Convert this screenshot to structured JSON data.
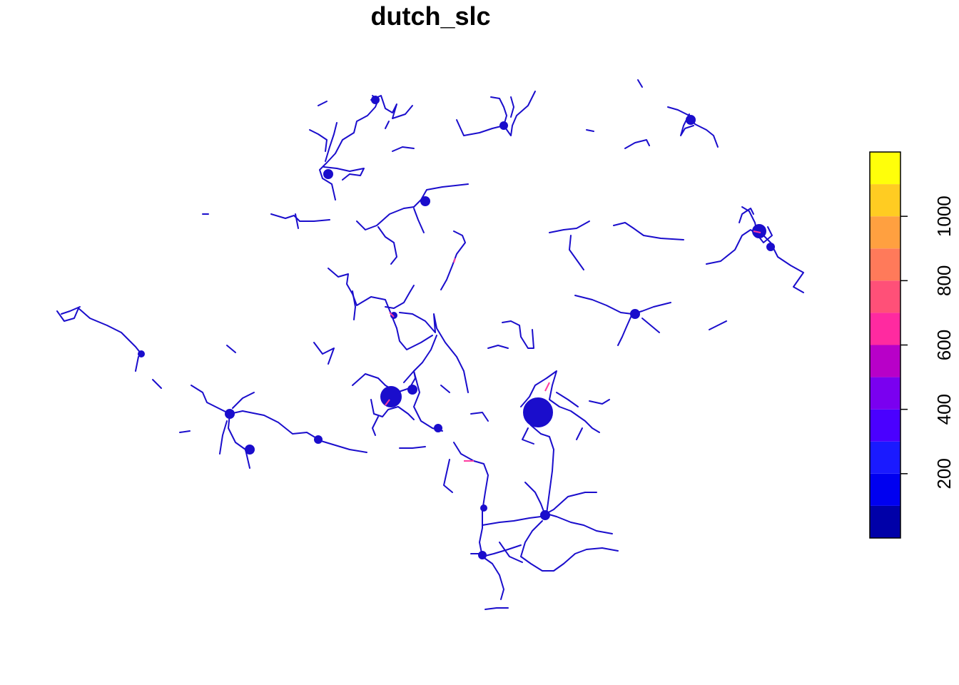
{
  "title": "dutch_slc",
  "legend": {
    "ticks": [
      "200",
      "400",
      "600",
      "800",
      "1000"
    ],
    "tick_values": [
      200,
      400,
      600,
      800,
      1000
    ],
    "range": [
      0,
      1200
    ],
    "bins": [
      {
        "from": 0,
        "to": 100,
        "color": "#0000a8"
      },
      {
        "from": 100,
        "to": 200,
        "color": "#0000f0"
      },
      {
        "from": 200,
        "to": 300,
        "color": "#1a1aff"
      },
      {
        "from": 300,
        "to": 400,
        "color": "#4a00ff"
      },
      {
        "from": 400,
        "to": 500,
        "color": "#7a00f0"
      },
      {
        "from": 500,
        "to": 600,
        "color": "#b800c8"
      },
      {
        "from": 600,
        "to": 700,
        "color": "#ff2aa0"
      },
      {
        "from": 700,
        "to": 800,
        "color": "#ff5078"
      },
      {
        "from": 800,
        "to": 900,
        "color": "#ff7a5a"
      },
      {
        "from": 900,
        "to": 1000,
        "color": "#ffa040"
      },
      {
        "from": 1000,
        "to": 1100,
        "color": "#ffcc22"
      },
      {
        "from": 1100,
        "to": 1200,
        "color": "#ffff0a"
      }
    ]
  },
  "map": {
    "line_color": "#1a0dcc",
    "highlight_color": "#ff3ca0"
  }
}
